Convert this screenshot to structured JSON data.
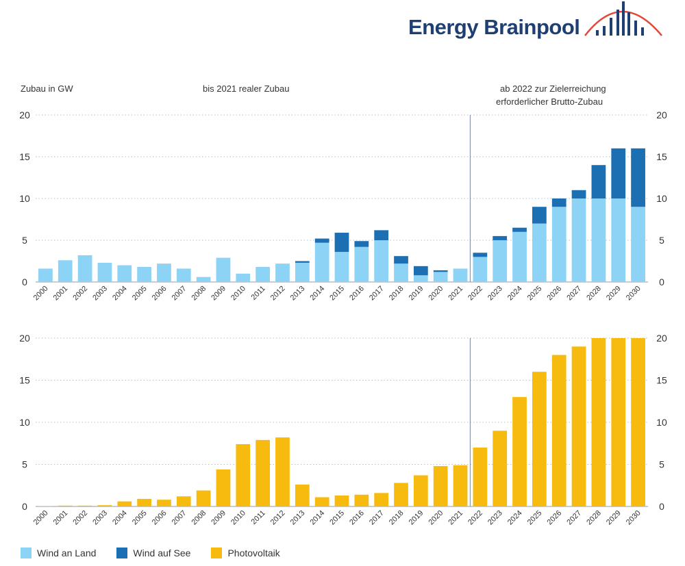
{
  "brand": {
    "name": "Energy Brainpool"
  },
  "notes": {
    "unit": "Zubau in GW",
    "left_period": "bis 2021 realer Zubau",
    "right_period_line1": "ab 2022 zur Zielerreichung",
    "right_period_line2": "erforderlicher Brutto-Zubau"
  },
  "colors": {
    "wind_land": "#8dd3f6",
    "wind_sea": "#1d6fb4",
    "pv": "#f7bb10",
    "grid": "#bdbdbd",
    "divider": "#8a96a6",
    "brand": "#1f3f73",
    "logo_accent": "#e2473a"
  },
  "chart_data": [
    {
      "type": "bar",
      "stacked": true,
      "categories": [
        "2000",
        "2001",
        "2002",
        "2003",
        "2004",
        "2005",
        "2006",
        "2007",
        "2008",
        "2009",
        "2010",
        "2011",
        "2012",
        "2013",
        "2014",
        "2015",
        "2016",
        "2017",
        "2018",
        "2019",
        "2020",
        "2021",
        "2022",
        "2023",
        "2024",
        "2025",
        "2026",
        "2027",
        "2028",
        "2029",
        "2030"
      ],
      "series": [
        {
          "name": "Wind an Land",
          "values": [
            1.6,
            2.6,
            3.2,
            2.3,
            2.0,
            1.8,
            2.2,
            1.6,
            0.6,
            2.9,
            1.0,
            1.8,
            2.2,
            2.3,
            4.7,
            3.6,
            4.2,
            5.0,
            2.2,
            0.8,
            1.2,
            1.6,
            3.0,
            5.0,
            6.0,
            7.0,
            9.0,
            10.0,
            10.0,
            10.0,
            9.0
          ]
        },
        {
          "name": "Wind auf See",
          "values": [
            0,
            0,
            0,
            0,
            0,
            0,
            0,
            0,
            0,
            0,
            0,
            0,
            0,
            0.2,
            0.5,
            2.3,
            0.7,
            1.2,
            0.9,
            1.1,
            0.2,
            0,
            0.5,
            0.5,
            0.5,
            2.0,
            1.0,
            1.0,
            4.0,
            6.0,
            7.0
          ]
        }
      ],
      "ylim": [
        0,
        20
      ],
      "yticks": [
        0,
        5,
        10,
        15,
        20
      ],
      "grid": true
    },
    {
      "type": "bar",
      "categories": [
        "2000",
        "2001",
        "2002",
        "2003",
        "2004",
        "2005",
        "2006",
        "2007",
        "2008",
        "2009",
        "2010",
        "2011",
        "2012",
        "2013",
        "2014",
        "2015",
        "2016",
        "2017",
        "2018",
        "2019",
        "2020",
        "2021",
        "2022",
        "2023",
        "2024",
        "2025",
        "2026",
        "2027",
        "2028",
        "2029",
        "2030"
      ],
      "series": [
        {
          "name": "Photovoltaik",
          "values": [
            0.05,
            0.1,
            0.1,
            0.15,
            0.6,
            0.9,
            0.8,
            1.2,
            1.9,
            4.4,
            7.4,
            7.9,
            8.2,
            2.6,
            1.1,
            1.3,
            1.4,
            1.6,
            2.8,
            3.7,
            4.8,
            4.9,
            7.0,
            9.0,
            13.0,
            16.0,
            18.0,
            19.0,
            20.0,
            20.0,
            20.0
          ]
        }
      ],
      "ylim": [
        0,
        20
      ],
      "yticks": [
        0,
        5,
        10,
        15,
        20
      ],
      "grid": true
    }
  ],
  "legend": [
    {
      "label": "Wind an Land",
      "color": "#8dd3f6"
    },
    {
      "label": "Wind auf See",
      "color": "#1d6fb4"
    },
    {
      "label": "Photovoltaik",
      "color": "#f7bb10"
    }
  ]
}
